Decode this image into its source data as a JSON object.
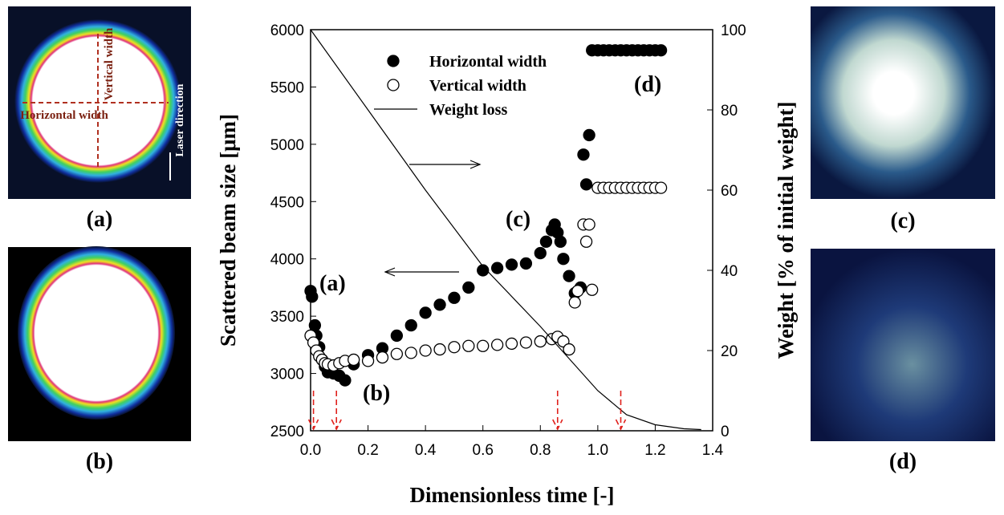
{
  "chart_data": {
    "type": "scatter",
    "xlabel": "Dimensionless time [-]",
    "ylabel": "Scattered beam size [μm]",
    "y2label": "Weight [% of initial weight]",
    "xlim": [
      0,
      1.4
    ],
    "xticks": [
      {
        "value": 0,
        "label": "0.0"
      },
      0.2,
      0.4,
      0.6,
      0.8,
      {
        "value": 1,
        "label": "1.0"
      },
      1.2,
      1.4
    ],
    "ylim": [
      2500,
      6000
    ],
    "yticks": [
      2500,
      3000,
      3500,
      4000,
      4500,
      5000,
      5500,
      6000
    ],
    "y2lim": [
      0,
      100
    ],
    "y2ticks": [
      0,
      20,
      40,
      60,
      80,
      100
    ],
    "series": [
      {
        "name": "Horizontal width",
        "style": "filled",
        "color": "#000000",
        "x": [
          0,
          0.005,
          0.015,
          0.02,
          0.03,
          0.04,
          0.05,
          0.06,
          0.08,
          0.1,
          0.12,
          0.15,
          0.2,
          0.25,
          0.3,
          0.35,
          0.4,
          0.45,
          0.5,
          0.55,
          0.6,
          0.65,
          0.7,
          0.75,
          0.8,
          0.82,
          0.84,
          0.85,
          0.86,
          0.87,
          0.88,
          0.9,
          0.92,
          0.94,
          0.95,
          0.96,
          0.97,
          0.98,
          1.0,
          1.02,
          1.04,
          1.06,
          1.08,
          1.1,
          1.12,
          1.14,
          1.16,
          1.18,
          1.2,
          1.22
        ],
        "values": [
          3720,
          3670,
          3420,
          3330,
          3230,
          3120,
          3060,
          3010,
          3000,
          2980,
          2940,
          3080,
          3160,
          3220,
          3330,
          3420,
          3530,
          3600,
          3660,
          3750,
          3900,
          3920,
          3950,
          3960,
          4050,
          4150,
          4250,
          4300,
          4230,
          4150,
          4000,
          3850,
          3700,
          3750,
          4910,
          4650,
          5080,
          5820,
          5820,
          5820,
          5820,
          5820,
          5820,
          5820,
          5820,
          5820,
          5820,
          5820,
          5820,
          5820
        ]
      },
      {
        "name": "Vertical width",
        "style": "open",
        "color": "#000000",
        "x": [
          0,
          0.01,
          0.02,
          0.03,
          0.04,
          0.05,
          0.06,
          0.08,
          0.1,
          0.12,
          0.15,
          0.2,
          0.25,
          0.3,
          0.35,
          0.4,
          0.45,
          0.5,
          0.55,
          0.6,
          0.65,
          0.7,
          0.75,
          0.8,
          0.84,
          0.86,
          0.88,
          0.9,
          0.92,
          0.93,
          0.95,
          0.96,
          0.97,
          0.98,
          1.0,
          1.02,
          1.04,
          1.06,
          1.08,
          1.1,
          1.12,
          1.14,
          1.16,
          1.18,
          1.2,
          1.22
        ],
        "values": [
          3330,
          3270,
          3200,
          3150,
          3120,
          3090,
          3080,
          3070,
          3090,
          3110,
          3120,
          3110,
          3140,
          3170,
          3180,
          3200,
          3210,
          3230,
          3240,
          3240,
          3250,
          3260,
          3270,
          3280,
          3300,
          3320,
          3280,
          3210,
          3620,
          3720,
          4300,
          4150,
          4300,
          3730,
          4620,
          4620,
          4620,
          4620,
          4620,
          4620,
          4620,
          4620,
          4620,
          4620,
          4620,
          4620
        ]
      },
      {
        "name": "Weight loss",
        "style": "line",
        "color": "#000000",
        "axis": "y2",
        "x": [
          0,
          0.2,
          0.4,
          0.6,
          0.8,
          0.9,
          1.0,
          1.1,
          1.2,
          1.3,
          1.36
        ],
        "values": [
          100,
          80,
          60,
          41,
          26,
          18,
          10,
          4,
          1.5,
          0.5,
          0.3
        ]
      }
    ],
    "annotations": [
      "(a)",
      "(b)",
      "(c)",
      "(d)"
    ],
    "time_markers": [
      0.01,
      0.09,
      0.86,
      1.08
    ],
    "marker_color": "#e0201b"
  },
  "panels": [
    {
      "label": "(a)",
      "notes": [
        "Vertical width",
        "Horizontal width",
        "Laser direction"
      ]
    },
    {
      "label": "(b)"
    },
    {
      "label": "(c)"
    },
    {
      "label": "(d)"
    }
  ]
}
